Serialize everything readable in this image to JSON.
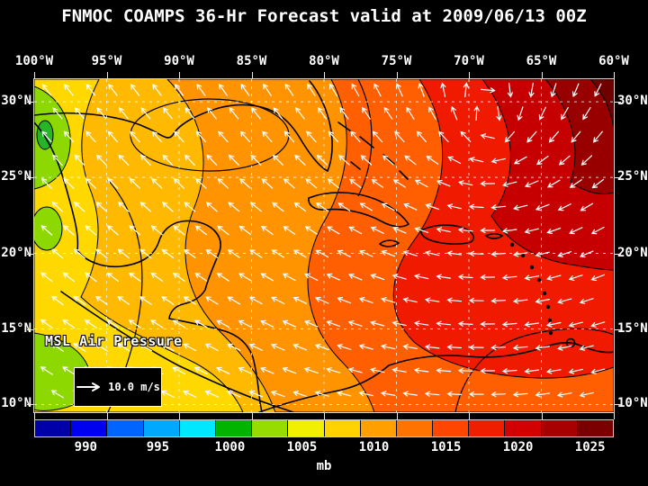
{
  "title": "FNMOC COAMPS 36-Hr Forecast valid at 2009/06/13 00Z",
  "axes": {
    "longitude_labels": [
      "100°W",
      "95°W",
      "90°W",
      "85°W",
      "80°W",
      "75°W",
      "70°W",
      "65°W",
      "60°W"
    ],
    "latitude_labels": [
      "30°N",
      "25°N",
      "20°N",
      "15°N",
      "10°N"
    ]
  },
  "map": {
    "field_label": "MSL Air Pressure",
    "wind_legend_label": "10.0 m/s"
  },
  "colorbar": {
    "unit": "mb",
    "tick_labels": [
      "990",
      "995",
      "1000",
      "1005",
      "1010",
      "1015",
      "1020",
      "1025"
    ],
    "colors": [
      "#0000a8",
      "#0000f0",
      "#0064ff",
      "#00a8ff",
      "#00e8ff",
      "#00b400",
      "#96dc00",
      "#f0f000",
      "#ffd200",
      "#ffa000",
      "#ff7300",
      "#ff4600",
      "#f01e00",
      "#d20000",
      "#a80000",
      "#7a0000"
    ]
  },
  "chart_data": {
    "type": "heatmap",
    "title": "FNMOC COAMPS 36-Hr Forecast valid at 2009/06/13 00Z",
    "field": "MSL Air Pressure",
    "unit": "mb",
    "colorbar_ticks": [
      990,
      995,
      1000,
      1005,
      1010,
      1015,
      1020,
      1025
    ],
    "x_axis_ticks": [
      "100°W",
      "95°W",
      "90°W",
      "85°W",
      "80°W",
      "75°W",
      "70°W",
      "65°W",
      "60°W"
    ],
    "y_axis_ticks": [
      "30°N",
      "25°N",
      "20°N",
      "15°N",
      "10°N"
    ],
    "vector_overlay_reference": "10.0 m/s",
    "pattern_summary": "High pressure (1020-1025 mb, dark red) over the NW Atlantic north-east of the Caribbean; 1010-1016 mb (yellow-orange) over Gulf of Mexico and Central America; 1005-1010 mb (green) patches over the eastern Pacific west of Mexico; easterly trade-wind vectors across the Caribbean curving clockwise around the Atlantic high."
  }
}
